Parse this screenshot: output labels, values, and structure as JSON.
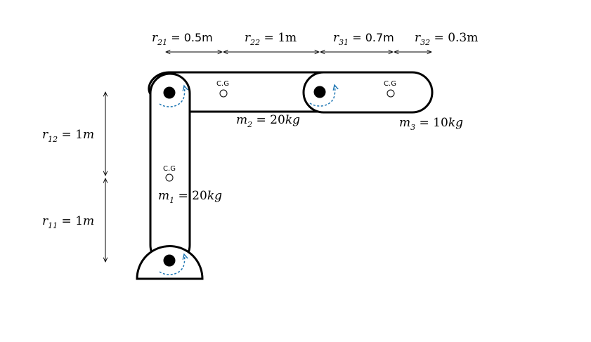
{
  "colors": {
    "outline": "#000000",
    "joint": "#000000",
    "rotation_arrow": "#1f77b4",
    "background": "#ffffff"
  },
  "cg_label": "C.G",
  "dimensions": {
    "r21": {
      "sym": "r",
      "sub": "21",
      "rest": " = 0.5m"
    },
    "r22": {
      "sym": "r",
      "sub": "22",
      "rest": " = 1m"
    },
    "r31": {
      "sym": "r",
      "sub": "31",
      "rest": " = 0.7m"
    },
    "r32": {
      "sym": "r",
      "sub": "32",
      "rest": " = 0.3m"
    },
    "r12": {
      "sym": "r",
      "sub": "12",
      "eq": " = 1",
      "unit": "m"
    },
    "r11": {
      "sym": "r",
      "sub": "11",
      "eq": " = 1",
      "unit": "m"
    }
  },
  "masses": {
    "m1": {
      "sym": "m",
      "sub": "1",
      "eq": " = 20",
      "unit": "kg"
    },
    "m2": {
      "sym": "m",
      "sub": "2",
      "eq": " = 20",
      "unit": "kg"
    },
    "m3": {
      "sym": "m",
      "sub": "3",
      "eq": " = 10",
      "unit": "kg"
    }
  },
  "icons": {
    "joint": "filled-circle",
    "cg": "hollow-circle",
    "rotation": "dashed-curved-arrow"
  }
}
